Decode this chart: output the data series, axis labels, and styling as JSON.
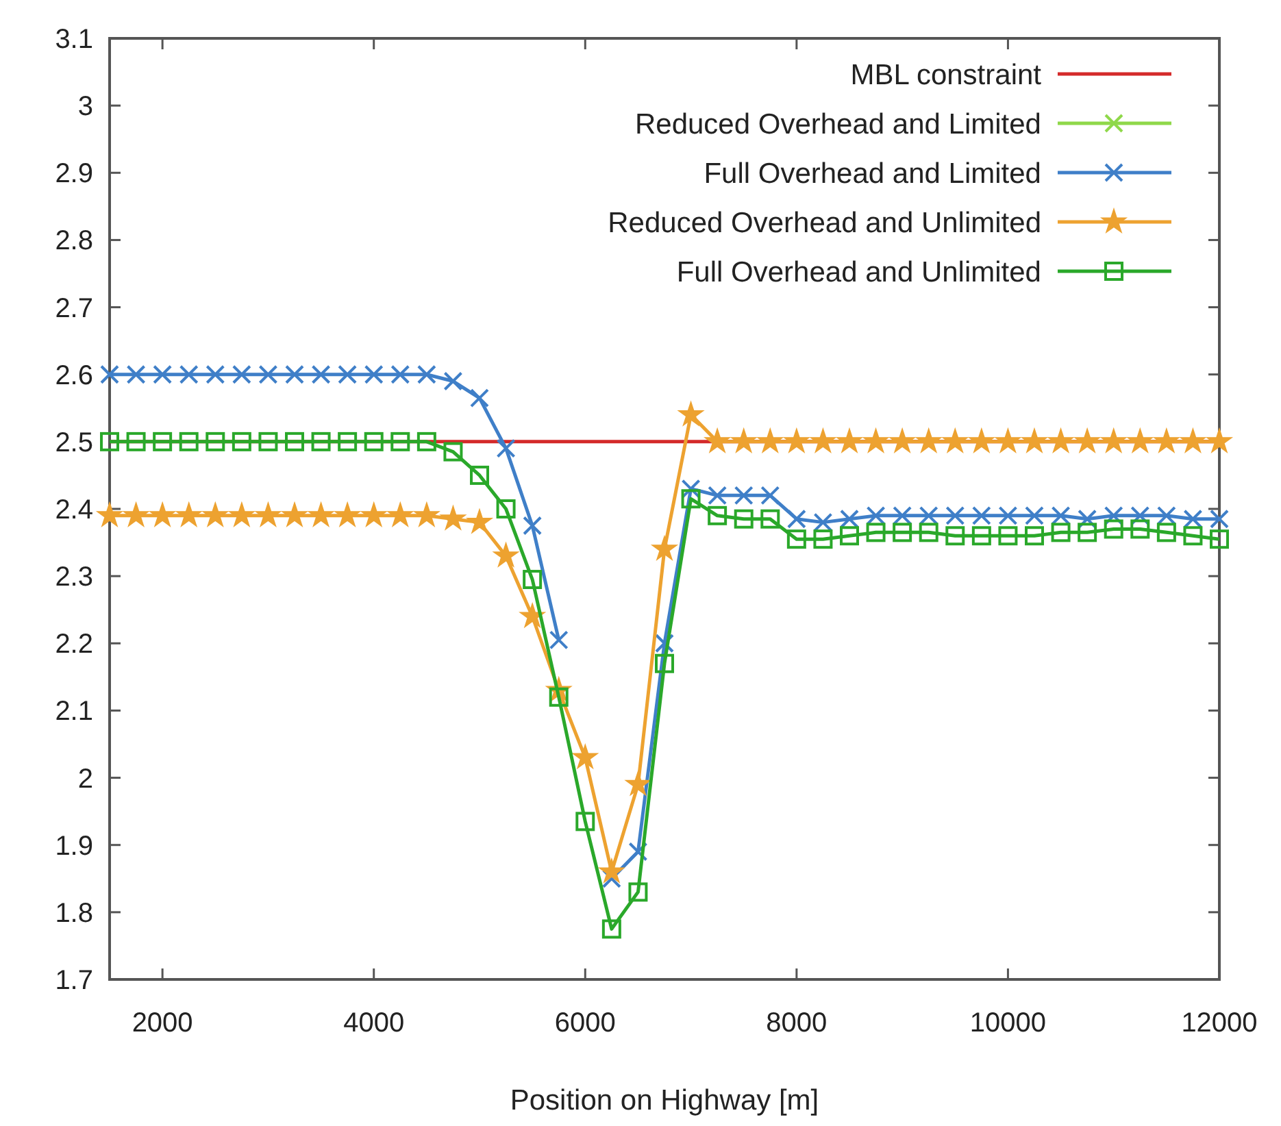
{
  "chart_data": {
    "type": "line",
    "xlabel": "Position on Highway [m]",
    "xlim": [
      1500,
      12000
    ],
    "ylim": [
      1.7,
      3.1
    ],
    "xticks": [
      2000,
      4000,
      6000,
      8000,
      10000,
      12000
    ],
    "yticks": [
      1.7,
      1.8,
      1.9,
      2,
      2.1,
      2.2,
      2.3,
      2.4,
      2.5,
      2.6,
      2.7,
      2.8,
      2.9,
      3,
      3.1
    ],
    "grid": false,
    "legend": "top right",
    "line_style": "solid",
    "x": [
      1500,
      1750,
      2000,
      2250,
      2500,
      2750,
      3000,
      3250,
      3500,
      3750,
      4000,
      4250,
      4500,
      4750,
      5000,
      5250,
      5500,
      5750,
      6000,
      6250,
      6500,
      6750,
      7000,
      7250,
      7500,
      7750,
      8000,
      8250,
      8500,
      8750,
      9000,
      9250,
      9500,
      9750,
      10000,
      10250,
      10500,
      10750,
      11000,
      11250,
      11500,
      11750,
      12000
    ],
    "series": [
      {
        "name": "MBL constraint",
        "color": "#d42a2a",
        "marker": "none",
        "x": [
          1500,
          12000
        ],
        "values": [
          2.5,
          2.5
        ]
      },
      {
        "name": "Reduced Overhead and Limited",
        "color": "#8fd84a",
        "marker": "cross",
        "values": [
          null,
          null,
          null,
          null,
          null,
          null,
          null,
          null,
          null,
          null,
          null,
          null,
          null,
          null,
          null,
          null,
          null,
          null,
          null,
          null,
          null,
          null,
          null,
          null,
          null,
          null,
          null,
          null,
          null,
          null,
          null,
          null,
          null,
          null,
          null,
          null,
          null,
          null,
          null,
          null,
          null,
          null,
          null
        ]
      },
      {
        "name": "Full Overhead and Limited",
        "color": "#3f7fc8",
        "marker": "cross",
        "values": [
          2.6,
          2.6,
          2.6,
          2.6,
          2.6,
          2.6,
          2.6,
          2.6,
          2.6,
          2.6,
          2.6,
          2.6,
          2.6,
          2.59,
          2.565,
          2.49,
          2.375,
          2.205,
          null,
          1.85,
          1.89,
          2.2,
          2.43,
          2.42,
          2.42,
          2.42,
          2.385,
          2.38,
          2.385,
          2.39,
          2.39,
          2.39,
          2.39,
          2.39,
          2.39,
          2.39,
          2.39,
          2.385,
          2.39,
          2.39,
          2.39,
          2.385,
          2.385
        ]
      },
      {
        "name": "Reduced Overhead and Unlimited",
        "color": "#eda230",
        "marker": "star",
        "values": [
          2.39,
          2.39,
          2.39,
          2.39,
          2.39,
          2.39,
          2.39,
          2.39,
          2.39,
          2.39,
          2.39,
          2.39,
          2.39,
          2.385,
          2.38,
          2.33,
          2.24,
          2.13,
          2.03,
          1.86,
          1.99,
          2.34,
          2.54,
          2.5,
          2.5,
          2.5,
          2.5,
          2.5,
          2.5,
          2.5,
          2.5,
          2.5,
          2.5,
          2.5,
          2.5,
          2.5,
          2.5,
          2.5,
          2.5,
          2.5,
          2.5,
          2.5,
          2.5
        ]
      },
      {
        "name": "Full Overhead and Unlimited",
        "color": "#2aa82a",
        "marker": "square",
        "values": [
          2.5,
          2.5,
          2.5,
          2.5,
          2.5,
          2.5,
          2.5,
          2.5,
          2.5,
          2.5,
          2.5,
          2.5,
          2.5,
          2.485,
          2.45,
          2.4,
          2.295,
          2.12,
          1.935,
          1.775,
          1.83,
          2.17,
          2.415,
          2.39,
          2.385,
          2.385,
          2.355,
          2.355,
          2.36,
          2.365,
          2.365,
          2.365,
          2.36,
          2.36,
          2.36,
          2.36,
          2.365,
          2.365,
          2.37,
          2.37,
          2.365,
          2.36,
          2.355
        ]
      }
    ]
  }
}
